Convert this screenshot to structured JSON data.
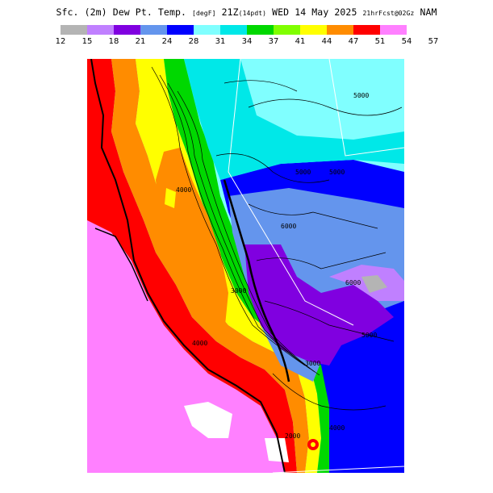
{
  "header": {
    "prefix": "Sfc. (2m) Dew Pt. Temp.",
    "units": "[degF]",
    "valid": "21Z",
    "fhr": "(14pdt)",
    "date": "WED 14 May 2025",
    "run": "21hrFcst@02Gz",
    "model": "NAM"
  },
  "legend": {
    "ticks": [
      "12",
      "15",
      "18",
      "21",
      "24",
      "28",
      "31",
      "34",
      "37",
      "41",
      "44",
      "47",
      "51",
      "54",
      "57"
    ],
    "colors": [
      "#b4b4b4",
      "#c080ff",
      "#8000e0",
      "#6495ed",
      "#0000ff",
      "#80ffff",
      "#00e8e8",
      "#00d800",
      "#80ff00",
      "#ffff00",
      "#ff8c00",
      "#ff0000",
      "#ff80ff"
    ]
  },
  "map": {
    "contour_labels": [
      "5000",
      "5000",
      "5000",
      "6000",
      "6000",
      "4000",
      "3000",
      "4000",
      "3000",
      "5000",
      "2000",
      "4000"
    ]
  }
}
